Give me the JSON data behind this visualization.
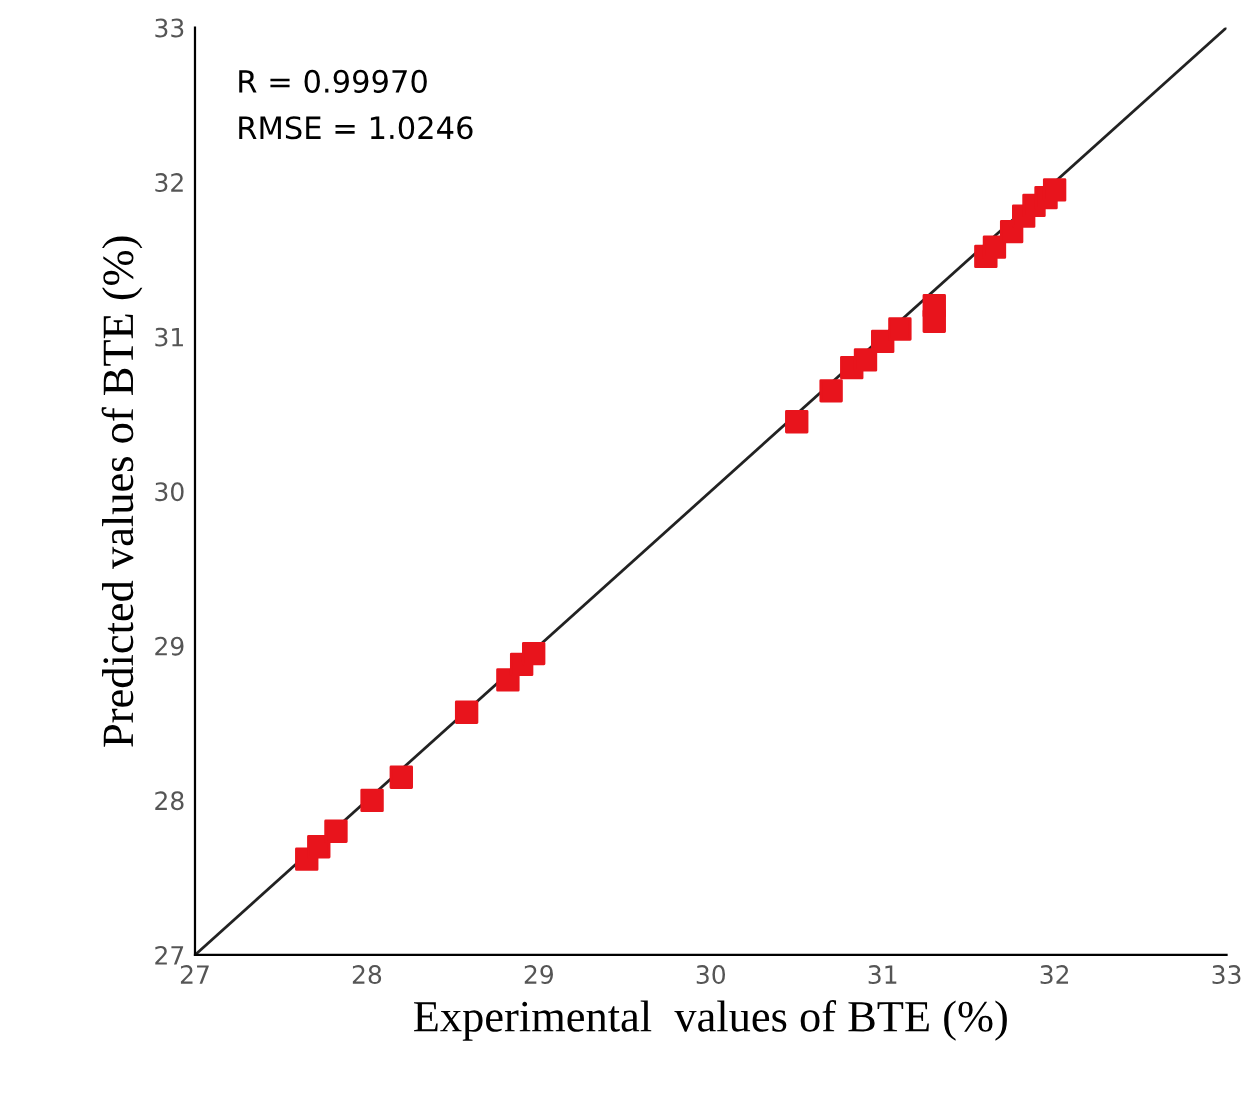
{
  "chart_data": {
    "type": "scatter",
    "xlabel": "Experimental  values of BTE (%)",
    "ylabel": "Predicted values of BTE (%)",
    "annotations": [
      "R = 0.99970",
      "RMSE = 1.0246"
    ],
    "series": [
      {
        "color": "#e8141c",
        "marker": "square",
        "x": [
          27.65,
          27.72,
          27.82,
          28.03,
          28.2,
          28.58,
          28.82,
          28.9,
          28.97,
          30.5,
          30.7,
          30.82,
          30.9,
          31.0,
          31.1,
          31.3,
          31.3,
          31.6,
          31.65,
          31.75,
          31.82,
          31.88,
          31.95,
          32.0
        ],
        "values": [
          27.62,
          27.7,
          27.8,
          28.0,
          28.15,
          28.57,
          28.78,
          28.88,
          28.95,
          30.45,
          30.65,
          30.8,
          30.85,
          30.97,
          31.05,
          31.2,
          31.1,
          31.52,
          31.58,
          31.68,
          31.78,
          31.85,
          31.9,
          31.95
        ]
      },
      {
        "type": "line",
        "color": "#222222",
        "x": [
          27,
          33
        ],
        "values": [
          27,
          33
        ]
      }
    ],
    "xlim": [
      27,
      33
    ],
    "ylim": [
      27,
      33
    ],
    "xticks": [
      27,
      28,
      29,
      30,
      31,
      32,
      33
    ],
    "yticks": [
      27,
      28,
      29,
      30,
      31,
      32,
      33
    ],
    "grid": false,
    "legend": false
  }
}
